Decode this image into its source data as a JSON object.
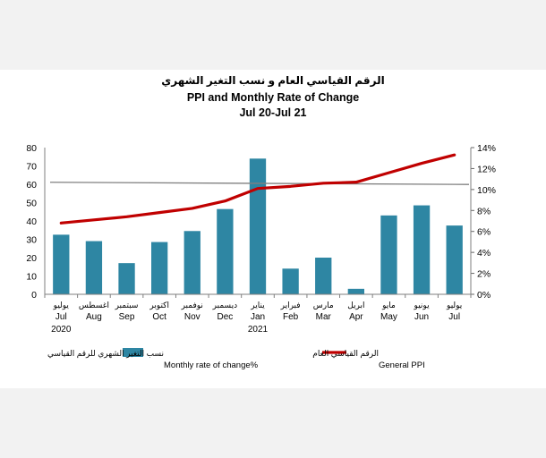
{
  "chart_data": {
    "type": "bar",
    "title_ar": "الرقم القياسي العام و نسب التغير الشهري",
    "title_en": "PPI and Monthly Rate of Change",
    "subtitle": "Jul 20-Jul 21",
    "categories": [
      {
        "ar": "يوليو",
        "en": "Jul",
        "year": "2020"
      },
      {
        "ar": "اغسطس",
        "en": "Aug",
        "year": ""
      },
      {
        "ar": "سبتمبر",
        "en": "Sep",
        "year": ""
      },
      {
        "ar": "اكتوبر",
        "en": "Oct",
        "year": ""
      },
      {
        "ar": "نوفمبر",
        "en": "Nov",
        "year": ""
      },
      {
        "ar": "ديسمبر",
        "en": "Dec",
        "year": ""
      },
      {
        "ar": "يناير",
        "en": "Jan",
        "year": "2021"
      },
      {
        "ar": "فبراير",
        "en": "Feb",
        "year": ""
      },
      {
        "ar": "مارس",
        "en": "Mar",
        "year": ""
      },
      {
        "ar": "ابريل",
        "en": "Apr",
        "year": ""
      },
      {
        "ar": "مايو",
        "en": "May",
        "year": ""
      },
      {
        "ar": "يونيو",
        "en": "Jun",
        "year": ""
      },
      {
        "ar": "يوليو",
        "en": "Jul",
        "year": ""
      }
    ],
    "series": [
      {
        "name_ar": "نسب التغير الشهري للرقم القياسي",
        "name_en": "Monthly rate of change%",
        "type": "bar",
        "axis": "left",
        "color": "#2e86a3",
        "values": [
          32.5,
          29,
          17,
          28.5,
          34.5,
          46.5,
          74,
          14,
          20,
          3,
          43,
          48.5,
          37.5
        ]
      },
      {
        "name_ar": "الرقم القياسي العام",
        "name_en": "General PPI",
        "type": "line",
        "axis": "right",
        "color": "#c00000",
        "values": [
          6.8,
          7.1,
          7.4,
          7.8,
          8.2,
          8.9,
          10.1,
          10.3,
          10.6,
          10.7,
          11.6,
          12.5,
          13.3
        ]
      }
    ],
    "reference_line": {
      "axis": "left",
      "value": 60.5,
      "color": "#808080"
    },
    "ylim_left": [
      0,
      80
    ],
    "yticks_left": [
      0,
      10,
      20,
      30,
      40,
      50,
      60,
      70,
      80
    ],
    "ylim_right": [
      0,
      14
    ],
    "yticks_right": [
      "0%",
      "2%",
      "4%",
      "6%",
      "8%",
      "10%",
      "12%",
      "14%"
    ],
    "legend_position": "bottom",
    "grid": false
  }
}
